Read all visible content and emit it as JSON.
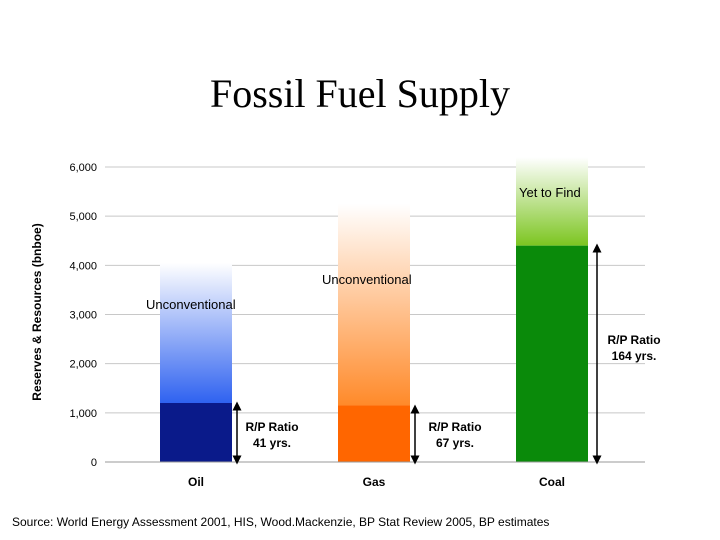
{
  "slide": {
    "title": "Fossil Fuel Supply",
    "source": "Source: World Energy Assessment 2001, HIS, Wood.Mackenzie, BP Stat Review 2005, BP estimates"
  },
  "chart_data": {
    "type": "bar",
    "ylabel": "Reserves & Resources (bnboe)",
    "ylim": [
      0,
      6000
    ],
    "yticks": [
      "0",
      "1,000",
      "2,000",
      "3,000",
      "4,000",
      "5,000",
      "6,000"
    ],
    "grid": true,
    "categories": [
      "Oil",
      "Gas",
      "Coal"
    ],
    "series": [
      {
        "segment": "proven",
        "values": [
          1200,
          1150,
          4400
        ]
      },
      {
        "segment": "unconventional_or_yet_to_find",
        "values": [
          2850,
          4100,
          1800
        ]
      }
    ],
    "colors": {
      "oil_proven": "#0a1a8a",
      "oil_upper": "#3d6ef5",
      "gas_proven": "#ff6600",
      "gas_upper": "#ff9a50",
      "coal_proven": "#0a8a0a",
      "coal_upper": "#8fd22a"
    },
    "annotations": {
      "oil_upper": "Unconventional",
      "gas_upper": "Unconventional",
      "coal_upper": "Yet to Find",
      "oil_ratio": [
        "R/P Ratio",
        "41 yrs."
      ],
      "gas_ratio": [
        "R/P Ratio",
        "67 yrs."
      ],
      "coal_ratio": [
        "R/P Ratio",
        "164 yrs."
      ]
    }
  }
}
